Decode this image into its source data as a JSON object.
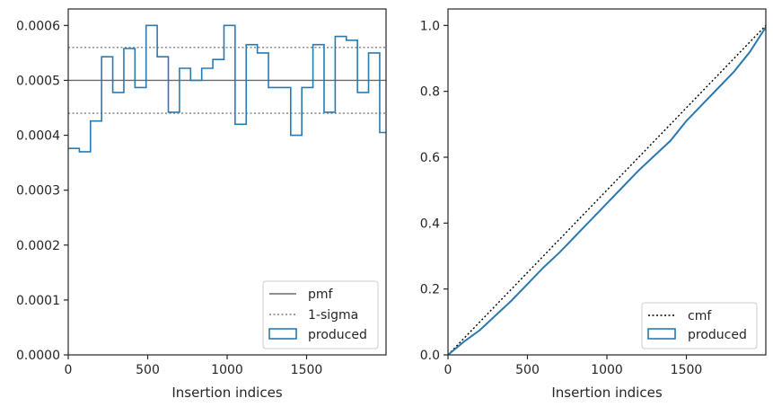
{
  "chart_data": [
    {
      "type": "step",
      "xlabel": "Insertion indices",
      "ylabel": "",
      "xlim": [
        0,
        2000
      ],
      "ylim": [
        0,
        0.00063
      ],
      "xticks": [
        0,
        500,
        1000,
        1500
      ],
      "xtick_labels": [
        "0",
        "500",
        "1000",
        "1500"
      ],
      "yticks": [
        0,
        0.0001,
        0.0002,
        0.0003,
        0.0004,
        0.0005,
        0.0006
      ],
      "ytick_labels": [
        "0.0000",
        "0.0001",
        "0.0002",
        "0.0003",
        "0.0004",
        "0.0005",
        "0.0006"
      ],
      "legend_position": "lower-right",
      "legend": [
        "pmf",
        "1-sigma",
        "produced"
      ],
      "pmf": 0.0005,
      "sigma_band": [
        0.00044,
        0.00056
      ],
      "produced": {
        "name": "produced",
        "bin_edges": [
          0,
          70,
          140,
          210,
          280,
          350,
          420,
          490,
          560,
          630,
          700,
          770,
          840,
          910,
          980,
          1050,
          1120,
          1190,
          1260,
          1330,
          1400,
          1470,
          1540,
          1610,
          1680,
          1750,
          1820,
          1890,
          1960,
          2030
        ],
        "values": [
          0.000376,
          0.00037,
          0.000426,
          0.000543,
          0.000478,
          0.000558,
          0.000487,
          0.0006,
          0.000543,
          0.000442,
          0.000522,
          0.0005,
          0.000522,
          0.000538,
          0.0006,
          0.00042,
          0.000565,
          0.00055,
          0.000487,
          0.000487,
          0.0004,
          0.000487,
          0.000565,
          0.000442,
          0.00058,
          0.000573,
          0.000478,
          0.00055,
          0.000405
        ]
      },
      "colors": {
        "produced": "#2a7ab0",
        "pmf": "#6b6b6b",
        "sigma": "#7f7f7f"
      }
    },
    {
      "type": "line",
      "xlabel": "Insertion indices",
      "ylabel": "",
      "xlim": [
        0,
        2000
      ],
      "ylim": [
        0,
        1.05
      ],
      "xticks": [
        0,
        500,
        1000,
        1500
      ],
      "xtick_labels": [
        "0",
        "500",
        "1000",
        "1500"
      ],
      "yticks": [
        0,
        0.2,
        0.4,
        0.6,
        0.8,
        1.0
      ],
      "ytick_labels": [
        "0.0",
        "0.2",
        "0.4",
        "0.6",
        "0.8",
        "1.0"
      ],
      "legend_position": "lower-right",
      "legend": [
        "cmf",
        "produced"
      ],
      "cmf": {
        "x": [
          0,
          2000
        ],
        "y": [
          0,
          1.0
        ]
      },
      "produced": {
        "name": "produced",
        "x": [
          0,
          100,
          200,
          300,
          400,
          500,
          600,
          700,
          800,
          900,
          1000,
          1100,
          1200,
          1300,
          1400,
          1500,
          1600,
          1700,
          1800,
          1900,
          2000
        ],
        "y": [
          0,
          0.04,
          0.075,
          0.12,
          0.165,
          0.215,
          0.265,
          0.31,
          0.36,
          0.41,
          0.46,
          0.51,
          0.56,
          0.605,
          0.65,
          0.71,
          0.76,
          0.81,
          0.86,
          0.92,
          0.995
        ]
      },
      "colors": {
        "produced": "#2a7ab0",
        "cmf": "#000000"
      }
    }
  ]
}
